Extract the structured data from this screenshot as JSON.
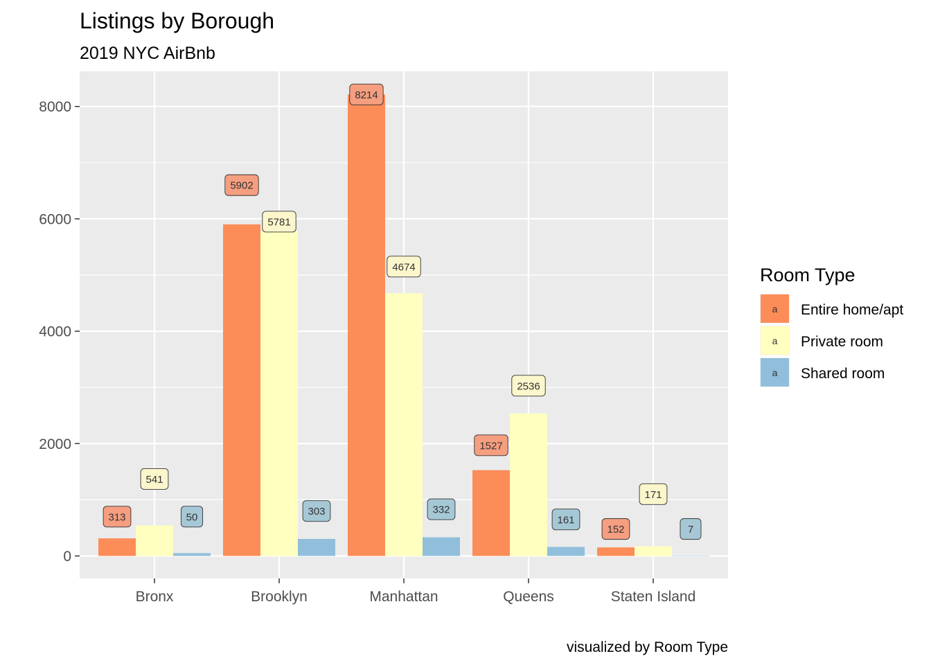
{
  "chart_data": {
    "type": "bar",
    "title": "Listings by Borough",
    "subtitle": "2019 NYC AirBnb",
    "caption": "visualized by Room Type",
    "xlabel": "",
    "ylabel": "",
    "categories": [
      "Bronx",
      "Brooklyn",
      "Manhattan",
      "Queens",
      "Staten Island"
    ],
    "series": [
      {
        "name": "Entire home/apt",
        "color": "#fc8d59",
        "label_fill": "#f59e80",
        "values": [
          313,
          5902,
          8214,
          1527,
          152
        ]
      },
      {
        "name": "Private room",
        "color": "#ffffbf",
        "label_fill": "#fbf6cb",
        "values": [
          541,
          5781,
          4674,
          2536,
          171
        ]
      },
      {
        "name": "Shared room",
        "color": "#91bfdb",
        "label_fill": "#a6c8d6",
        "values": [
          50,
          303,
          332,
          161,
          7
        ]
      }
    ],
    "data_labels": [
      [
        "313",
        "541",
        "50"
      ],
      [
        "5902",
        "5781",
        "303"
      ],
      [
        "8214",
        "4674",
        "332"
      ],
      [
        "1527",
        "2536",
        "161"
      ],
      [
        "152",
        "171",
        "7"
      ]
    ],
    "label_values": [
      [
        700,
        1370,
        700
      ],
      [
        6600,
        5950,
        800
      ],
      [
        8214,
        5150,
        830
      ],
      [
        1970,
        3030,
        650
      ],
      [
        480,
        1100,
        480
      ]
    ],
    "y_ticks": [
      0,
      2000,
      4000,
      6000,
      8000
    ],
    "y_tick_labels": [
      "0",
      "2000",
      "4000",
      "6000",
      "8000"
    ],
    "ylim": [
      -400,
      8625
    ],
    "grid": true,
    "panel_background": "#ebebeb",
    "legend": {
      "title": "Room Type",
      "position": "right",
      "key_glyph": "a",
      "entries": [
        "Entire home/apt",
        "Private room",
        "Shared room"
      ]
    }
  }
}
